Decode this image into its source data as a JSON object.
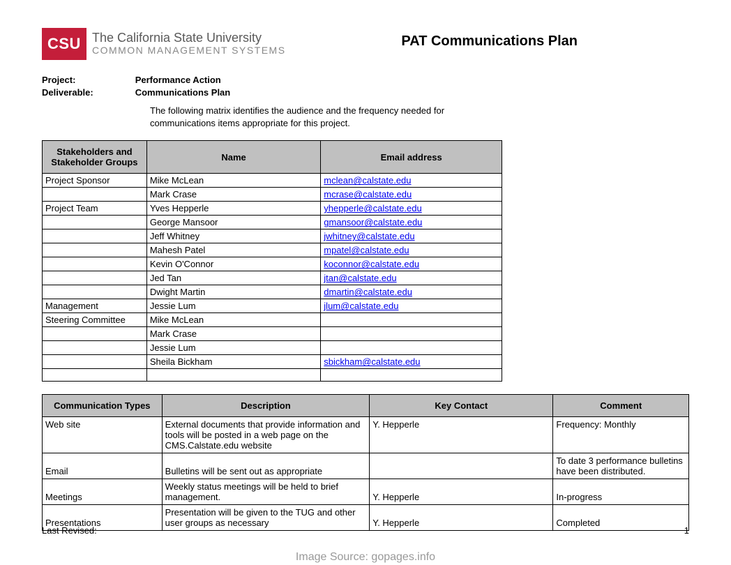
{
  "logo": {
    "badge": "CSU",
    "line1": "The California State University",
    "line2": "COMMON MANAGEMENT SYSTEMS"
  },
  "doc_title": "PAT Communications Plan",
  "meta": {
    "project_label": "Project:",
    "deliverable_label": "Deliverable:",
    "project_value": "Performance Action",
    "deliverable_value": "Communications Plan"
  },
  "intro": "The following matrix identifies the audience and the frequency needed for communications items appropriate for this project.",
  "table1": {
    "headers": {
      "stakeholders": "Stakeholders and Stakeholder Groups",
      "name": "Name",
      "email": "Email address"
    },
    "rows": [
      {
        "group": "Project Sponsor",
        "name": "Mike McLean",
        "email": "mclean@calstate.edu"
      },
      {
        "group": "",
        "name": "Mark Crase",
        "email": "mcrase@calstate.edu"
      },
      {
        "group": "Project Team",
        "name": "Yves Hepperle",
        "email": "yhepperle@calstate.edu"
      },
      {
        "group": "",
        "name": "George Mansoor",
        "email": "gmansoor@calstate.edu"
      },
      {
        "group": "",
        "name": "Jeff Whitney",
        "email": "jwhitney@calstate.edu"
      },
      {
        "group": "",
        "name": "Mahesh Patel",
        "email": "mpatel@calstate.edu"
      },
      {
        "group": "",
        "name": "Kevin O'Connor",
        "email": "koconnor@calstate.edu"
      },
      {
        "group": "",
        "name": "Jed Tan",
        "email": "jtan@calstate.edu"
      },
      {
        "group": "",
        "name": "Dwight Martin",
        "email": "dmartin@calstate.edu"
      },
      {
        "group": "Management",
        "name": "Jessie Lum",
        "email": "jlum@calstate.edu"
      },
      {
        "group": "Steering Committee",
        "name": "Mike McLean",
        "email": ""
      },
      {
        "group": "",
        "name": "Mark Crase",
        "email": ""
      },
      {
        "group": "",
        "name": "Jessie Lum",
        "email": ""
      },
      {
        "group": "",
        "name": "Sheila Bickham",
        "email": "sbickham@calstate.edu"
      },
      {
        "group": "",
        "name": "",
        "email": ""
      }
    ]
  },
  "table2": {
    "headers": {
      "type": "Communication Types",
      "description": "Description",
      "contact": "Key Contact",
      "comment": "Comment"
    },
    "rows": [
      {
        "type": "Web site",
        "description": "External documents that provide information and tools will be posted in a web page on the CMS.Calstate.edu website",
        "contact": "Y. Hepperle",
        "comment": "Frequency: Monthly",
        "valign": "top"
      },
      {
        "type": "Email",
        "description": "Bulletins will be sent out as appropriate",
        "contact": "",
        "comment": "To date 3 performance bulletins have been distributed.",
        "valign": "bottom",
        "comment_valign": "top"
      },
      {
        "type": "Meetings",
        "description": "Weekly status meetings will be held to brief management.",
        "contact": "Y. Hepperle",
        "comment": "In-progress",
        "valign": "bottom"
      },
      {
        "type": "Presentations",
        "description": "Presentation will be given to the TUG and other user groups as necessary",
        "contact": "Y. Hepperle",
        "comment": "Completed",
        "valign": "bottom"
      }
    ]
  },
  "footer": {
    "last_revised": "Last Revised:",
    "page_no": "1"
  },
  "watermark": "Image Source: gopages.info"
}
